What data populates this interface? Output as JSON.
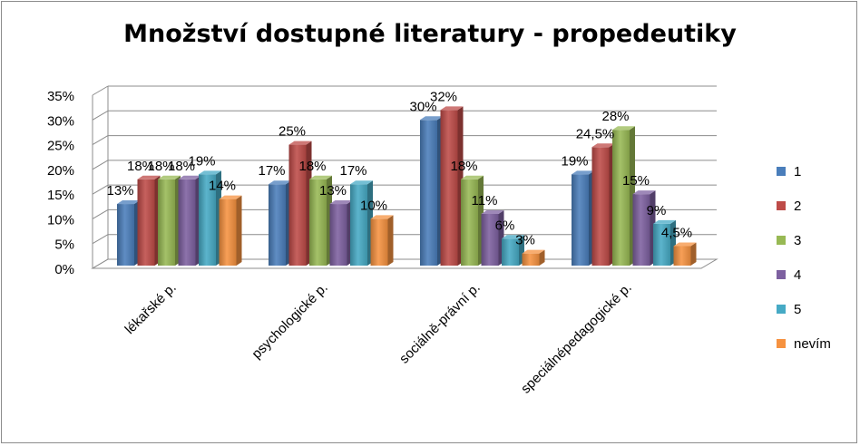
{
  "chart_data": {
    "type": "bar",
    "title": "Množství dostupné literatury - propedeutiky",
    "categories": [
      "lékařské p.",
      "psychologické p.",
      "sociálně-právní p.",
      "speciálnépedagogické p."
    ],
    "series": [
      {
        "name": "1",
        "values": [
          13,
          17,
          30,
          19
        ],
        "color": "#4a7ebb"
      },
      {
        "name": "2",
        "values": [
          18,
          25,
          32,
          24.5
        ],
        "color": "#be4b48"
      },
      {
        "name": "3",
        "values": [
          18,
          18,
          18,
          28
        ],
        "color": "#98b954"
      },
      {
        "name": "4",
        "values": [
          18,
          13,
          11,
          15
        ],
        "color": "#7d60a0"
      },
      {
        "name": "5",
        "values": [
          19,
          17,
          6,
          9
        ],
        "color": "#46aac5"
      },
      {
        "name": "nevím",
        "values": [
          14,
          10,
          3,
          4.5
        ],
        "color": "#f69240"
      }
    ],
    "data_labels": [
      [
        "13%",
        "17%",
        "30%",
        "19%"
      ],
      [
        "18%",
        "25%",
        "32%",
        "24,5%"
      ],
      [
        "18%",
        "18%",
        "18%",
        "28%"
      ],
      [
        "18%",
        "13%",
        "11%",
        "15%"
      ],
      [
        "19%",
        "17%",
        "6%",
        "9%"
      ],
      [
        "14%",
        "10%",
        "3%",
        "4,5%"
      ]
    ],
    "ylim": [
      0,
      35
    ],
    "yticks": [
      "0%",
      "5%",
      "10%",
      "15%",
      "20%",
      "25%",
      "30%",
      "35%"
    ],
    "xlabel": "",
    "ylabel": "",
    "grid": true,
    "legend": "right"
  }
}
